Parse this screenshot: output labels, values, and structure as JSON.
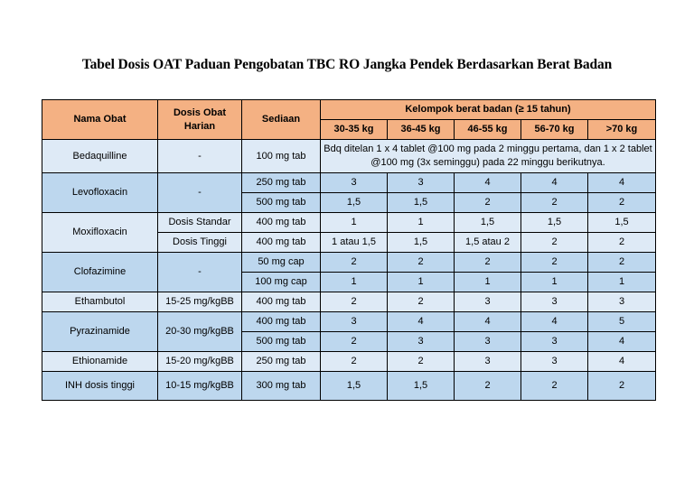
{
  "title": "Tabel Dosis OAT Paduan Pengobatan TBC RO Jangka Pendek Berdasarkan Berat Badan",
  "headers": {
    "drug": "Nama Obat",
    "daily_dose": "Dosis Obat Harian",
    "preparation": "Sediaan",
    "weight_group": "Kelompok berat badan (≥ 15 tahun)",
    "weights": [
      "30-35 kg",
      "36-45 kg",
      "46-55 kg",
      "56-70 kg",
      ">70 kg"
    ]
  },
  "rows": {
    "bedaquilline": {
      "name": "Bedaquilline",
      "dose": "-",
      "prep": "100 mg tab",
      "note": "Bdq ditelan 1 x 4 tablet @100 mg pada 2 minggu pertama, dan 1 x 2 tablet @100 mg (3x seminggu) pada 22 minggu berikutnya."
    },
    "levofloxacin": {
      "name": "Levofloxacin",
      "dose": "-",
      "prep": [
        "250 mg tab",
        "500 mg tab"
      ],
      "values": [
        [
          "3",
          "3",
          "4",
          "4",
          "4"
        ],
        [
          "1,5",
          "1,5",
          "2",
          "2",
          "2"
        ]
      ]
    },
    "moxifloxacin": {
      "name": "Moxifloxacin",
      "dose": [
        "Dosis Standar",
        "Dosis Tinggi"
      ],
      "prep": [
        "400 mg tab",
        "400 mg tab"
      ],
      "values": [
        [
          "1",
          "1",
          "1,5",
          "1,5",
          "1,5"
        ],
        [
          "1 atau 1,5",
          "1,5",
          "1,5 atau 2",
          "2",
          "2"
        ]
      ]
    },
    "clofazimine": {
      "name": "Clofazimine",
      "dose": "-",
      "prep": [
        "50 mg cap",
        "100 mg cap"
      ],
      "values": [
        [
          "2",
          "2",
          "2",
          "2",
          "2"
        ],
        [
          "1",
          "1",
          "1",
          "1",
          "1"
        ]
      ]
    },
    "ethambutol": {
      "name": "Ethambutol",
      "dose": "15-25 mg/kgBB",
      "prep": "400 mg tab",
      "values": [
        "2",
        "2",
        "3",
        "3",
        "3"
      ]
    },
    "pyrazinamide": {
      "name": "Pyrazinamide",
      "dose": "20-30 mg/kgBB",
      "prep": [
        "400 mg tab",
        "500 mg tab"
      ],
      "values": [
        [
          "3",
          "4",
          "4",
          "4",
          "5"
        ],
        [
          "2",
          "3",
          "3",
          "3",
          "4"
        ]
      ]
    },
    "ethionamide": {
      "name": "Ethionamide",
      "dose": "15-20 mg/kgBB",
      "prep": "250 mg tab",
      "values": [
        "2",
        "2",
        "3",
        "3",
        "4"
      ]
    },
    "inh": {
      "name": "INH dosis tinggi",
      "dose": "10-15 mg/kgBB",
      "prep": "300 mg tab",
      "values": [
        "1,5",
        "1,5",
        "2",
        "2",
        "2"
      ]
    }
  },
  "colors": {
    "header": "#f4b183",
    "row_light": "#deeaf6",
    "row_dark": "#bdd7ee"
  }
}
